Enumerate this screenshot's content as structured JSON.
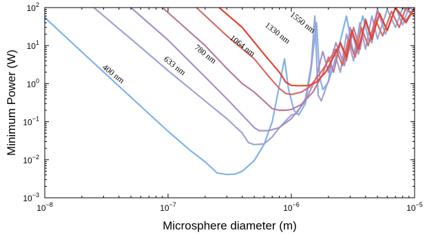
{
  "chart_data": {
    "type": "line",
    "xlabel": "Microsphere diameter (m)",
    "ylabel": "Minimum Power (W)",
    "xscale": "log",
    "yscale": "log",
    "xlim": [
      1e-08,
      1e-05
    ],
    "ylim": [
      0.001,
      100
    ],
    "x_ticks": [
      {
        "value": 1e-08,
        "mant": "10",
        "exp": "−8"
      },
      {
        "value": 1e-07,
        "mant": "10",
        "exp": "−7"
      },
      {
        "value": 1e-06,
        "mant": "10",
        "exp": "−6"
      },
      {
        "value": 1e-05,
        "mant": "10",
        "exp": "−5"
      }
    ],
    "y_ticks": [
      {
        "value": 0.001,
        "mant": "10",
        "exp": "−3"
      },
      {
        "value": 0.01,
        "mant": "10",
        "exp": "−2"
      },
      {
        "value": 0.1,
        "mant": "10",
        "exp": "−1"
      },
      {
        "value": 1,
        "mant": "10",
        "exp": "0"
      },
      {
        "value": 10,
        "mant": "10",
        "exp": "1"
      },
      {
        "value": 100,
        "mant": "10",
        "exp": "2"
      }
    ],
    "grid": false,
    "legend": "inline curve labels",
    "series": [
      {
        "name": "400 nm",
        "color": "#7fb2ec",
        "label_at": [
          3.5e-08,
          1.6
        ],
        "points": [
          [
            1e-08,
            55
          ],
          [
            2e-08,
            6.8
          ],
          [
            5e-08,
            0.44
          ],
          [
            1e-07,
            0.056
          ],
          [
            1.5e-07,
            0.018
          ],
          [
            2e-07,
            0.0088
          ],
          [
            2.5e-07,
            0.0045
          ],
          [
            3e-07,
            0.0041
          ],
          [
            3.5e-07,
            0.0042
          ],
          [
            4e-07,
            0.005
          ],
          [
            5e-07,
            0.0095
          ],
          [
            6e-07,
            0.025
          ],
          [
            7e-07,
            0.1
          ],
          [
            8e-07,
            0.9
          ],
          [
            8.8e-07,
            4.5
          ],
          [
            9.5e-07,
            0.7
          ],
          [
            1.05e-06,
            0.2
          ],
          [
            1.15e-06,
            0.15
          ],
          [
            1.3e-06,
            0.3
          ],
          [
            1.45e-06,
            2.5
          ],
          [
            1.6e-06,
            40
          ],
          [
            1.7e-06,
            1.5
          ],
          [
            1.8e-06,
            0.7
          ],
          [
            2e-06,
            1.1
          ],
          [
            2.4e-06,
            8
          ],
          [
            2.8e-06,
            60
          ],
          [
            3.2e-06,
            6
          ],
          [
            3.8e-06,
            60
          ],
          [
            4.3e-06,
            12
          ],
          [
            5e-06,
            90
          ],
          [
            5.8e-06,
            20
          ],
          [
            7e-06,
            100
          ],
          [
            8e-06,
            35
          ],
          [
            9e-06,
            100
          ],
          [
            1e-05,
            80
          ]
        ]
      },
      {
        "name": "633 nm",
        "color": "#9ca3d6",
        "label_at": [
          1.1e-07,
          2.6
        ],
        "points": [
          [
            2.5e-08,
            100
          ],
          [
            5e-08,
            15
          ],
          [
            1e-07,
            2.2
          ],
          [
            2e-07,
            0.35
          ],
          [
            3e-07,
            0.12
          ],
          [
            4e-07,
            0.05
          ],
          [
            4.5e-07,
            0.028
          ],
          [
            5e-07,
            0.025
          ],
          [
            6e-07,
            0.026
          ],
          [
            7e-07,
            0.04
          ],
          [
            8e-07,
            0.07
          ],
          [
            1e-06,
            0.15
          ],
          [
            1.1e-06,
            0.16
          ],
          [
            1.3e-06,
            0.4
          ],
          [
            1.45e-06,
            3
          ],
          [
            1.55e-06,
            60
          ],
          [
            1.65e-06,
            0.5
          ],
          [
            1.75e-06,
            0.35
          ],
          [
            2e-06,
            1.2
          ],
          [
            2.2e-06,
            8
          ],
          [
            2.5e-06,
            2
          ],
          [
            2.8e-06,
            20
          ],
          [
            3.2e-06,
            4
          ],
          [
            3.6e-06,
            40
          ],
          [
            4e-06,
            8
          ],
          [
            4.5e-06,
            60
          ],
          [
            5e-06,
            15
          ],
          [
            6e-06,
            90
          ],
          [
            7e-06,
            30
          ],
          [
            8e-06,
            100
          ],
          [
            1e-05,
            60
          ]
        ]
      },
      {
        "name": "780 nm",
        "color": "#a690c6",
        "label_at": [
          1.95e-07,
          5.3
        ],
        "points": [
          [
            5e-08,
            100
          ],
          [
            1e-07,
            14
          ],
          [
            2e-07,
            1.5
          ],
          [
            3e-07,
            0.4
          ],
          [
            4e-07,
            0.15
          ],
          [
            5e-07,
            0.07
          ],
          [
            5.5e-07,
            0.058
          ],
          [
            6.5e-07,
            0.058
          ],
          [
            8e-07,
            0.07
          ],
          [
            1e-06,
            0.12
          ],
          [
            1.3e-06,
            0.35
          ],
          [
            1.6e-06,
            1.5
          ],
          [
            1.8e-06,
            7
          ],
          [
            2e-06,
            2
          ],
          [
            2.3e-06,
            12
          ],
          [
            2.7e-06,
            3
          ],
          [
            3e-06,
            30
          ],
          [
            3.5e-06,
            6
          ],
          [
            4e-06,
            50
          ],
          [
            4.5e-06,
            12
          ],
          [
            5e-06,
            80
          ],
          [
            6e-06,
            25
          ],
          [
            7e-06,
            100
          ],
          [
            8.5e-06,
            40
          ],
          [
            1e-05,
            100
          ]
        ]
      },
      {
        "name": "1064 nm",
        "color": "#b9799d",
        "label_at": [
          3.9e-07,
          8.8
        ],
        "points": [
          [
            9e-08,
            100
          ],
          [
            2e-07,
            10
          ],
          [
            3e-07,
            2.5
          ],
          [
            4e-07,
            1
          ],
          [
            5e-07,
            0.6
          ],
          [
            6e-07,
            0.35
          ],
          [
            7e-07,
            0.22
          ],
          [
            8e-07,
            0.2
          ],
          [
            9e-07,
            0.2
          ],
          [
            1e-06,
            0.21
          ],
          [
            1.2e-06,
            0.28
          ],
          [
            1.5e-06,
            0.6
          ],
          [
            1.8e-06,
            1.8
          ],
          [
            2e-06,
            5
          ],
          [
            2.2e-06,
            2
          ],
          [
            2.5e-06,
            12
          ],
          [
            2.8e-06,
            4
          ],
          [
            3.2e-06,
            30
          ],
          [
            3.6e-06,
            8
          ],
          [
            4e-06,
            50
          ],
          [
            4.5e-06,
            15
          ],
          [
            5e-06,
            80
          ],
          [
            6e-06,
            25
          ],
          [
            7e-06,
            100
          ],
          [
            8.5e-06,
            45
          ],
          [
            1e-05,
            100
          ]
        ]
      },
      {
        "name": "1330 nm",
        "color": "#d66a63",
        "label_at": [
          7.5e-07,
          19
        ],
        "points": [
          [
            1.7e-07,
            100
          ],
          [
            3e-07,
            18
          ],
          [
            5e-07,
            4.5
          ],
          [
            6.5e-07,
            1.6
          ],
          [
            8e-07,
            0.75
          ],
          [
            9e-07,
            0.55
          ],
          [
            1e-06,
            0.52
          ],
          [
            1.2e-06,
            0.6
          ],
          [
            1.4e-06,
            0.8
          ],
          [
            1.7e-06,
            1.8
          ],
          [
            2e-06,
            4
          ],
          [
            2.3e-06,
            8
          ],
          [
            2.6e-06,
            3
          ],
          [
            2.9e-06,
            15
          ],
          [
            3.3e-06,
            5
          ],
          [
            3.7e-06,
            30
          ],
          [
            4.2e-06,
            10
          ],
          [
            4.8e-06,
            50
          ],
          [
            5.5e-06,
            18
          ],
          [
            6.5e-06,
            80
          ],
          [
            7.5e-06,
            30
          ],
          [
            8.5e-06,
            100
          ],
          [
            1e-05,
            60
          ]
        ]
      },
      {
        "name": "1550 nm",
        "color": "#e8412e",
        "label_at": [
          1.2e-06,
          36
        ],
        "points": [
          [
            2.6e-07,
            100
          ],
          [
            4e-07,
            30
          ],
          [
            6e-07,
            6
          ],
          [
            8e-07,
            2
          ],
          [
            9e-07,
            1.1
          ],
          [
            1e-06,
            0.9
          ],
          [
            1.2e-06,
            0.88
          ],
          [
            1.4e-06,
            0.9
          ],
          [
            1.6e-06,
            1.1
          ],
          [
            1.9e-06,
            2
          ],
          [
            2.2e-06,
            5
          ],
          [
            2.5e-06,
            12
          ],
          [
            2.8e-06,
            5
          ],
          [
            3.1e-06,
            25
          ],
          [
            3.5e-06,
            8
          ],
          [
            4e-06,
            45
          ],
          [
            4.5e-06,
            15
          ],
          [
            5.2e-06,
            70
          ],
          [
            6e-06,
            25
          ],
          [
            7e-06,
            100
          ],
          [
            8.5e-06,
            40
          ],
          [
            1e-05,
            100
          ]
        ]
      }
    ]
  }
}
